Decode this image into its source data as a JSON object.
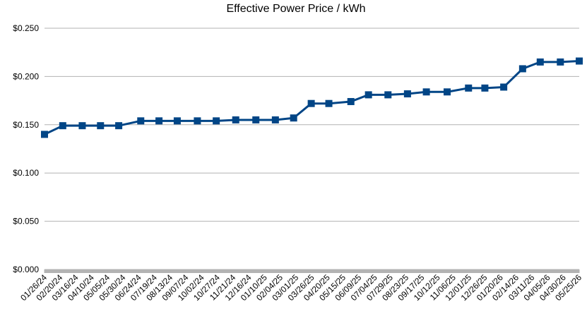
{
  "chart_data": {
    "type": "line",
    "title": "Effective Power Price / kWh",
    "x": [
      "01/26/24",
      "02/24/24",
      "03/26/24",
      "04/24/24",
      "05/23/24",
      "06/27/24",
      "07/26/24",
      "08/24/24",
      "09/25/24",
      "10/25/24",
      "11/25/24",
      "12/27/24",
      "01/27/25",
      "02/25/25",
      "03/25/25",
      "04/22/25",
      "05/27/25",
      "06/24/25",
      "07/25/25",
      "08/25/25",
      "09/24/25",
      "10/27/25",
      "11/30/25",
      "12/26/25",
      "01/25/26",
      "02/24/26",
      "03/24/26",
      "04/25/26",
      "05/25/26"
    ],
    "series": [
      {
        "name": "Effective Power Price / kWh",
        "color": "#004586",
        "values": [
          0.14,
          0.149,
          0.149,
          0.149,
          0.149,
          0.154,
          0.154,
          0.154,
          0.154,
          0.154,
          0.155,
          0.155,
          0.155,
          0.157,
          0.172,
          0.172,
          0.174,
          0.181,
          0.181,
          0.182,
          0.184,
          0.184,
          0.188,
          0.188,
          0.189,
          0.208,
          0.215,
          0.215,
          0.216
        ]
      }
    ],
    "xlim": [
      "01/26/24",
      "05/25/26"
    ],
    "xticks": [
      "01/26/24",
      "02/20/24",
      "03/16/24",
      "04/10/24",
      "05/05/24",
      "05/30/24",
      "06/24/24",
      "07/19/24",
      "08/13/24",
      "09/07/24",
      "10/02/24",
      "10/27/24",
      "11/21/24",
      "12/16/24",
      "01/10/25",
      "02/04/25",
      "03/01/25",
      "03/26/25",
      "04/20/25",
      "05/15/25",
      "06/09/25",
      "07/04/25",
      "07/29/25",
      "08/23/25",
      "09/17/25",
      "10/12/25",
      "11/06/25",
      "12/01/25",
      "12/26/25",
      "01/20/26",
      "02/14/26",
      "03/11/26",
      "04/05/26",
      "04/30/26",
      "05/25/26"
    ],
    "ylim": [
      0,
      0.25
    ],
    "yticks": [
      {
        "value": 0,
        "label": "$0.000"
      },
      {
        "value": 0.05,
        "label": "$0.050"
      },
      {
        "value": 0.1,
        "label": "$0.100"
      },
      {
        "value": 0.15,
        "label": "$0.150"
      },
      {
        "value": 0.2,
        "label": "$0.200"
      },
      {
        "value": 0.25,
        "label": "$0.250"
      }
    ],
    "grid": true
  }
}
